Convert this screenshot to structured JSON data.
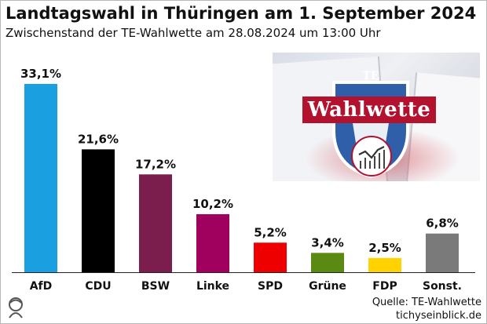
{
  "title": "Landtagswahl in Thüringen am 1. September 2024",
  "subtitle": "Zwischenstand der TE-Wahlwette am 28.08.2024 um 13:00 Uhr",
  "chart_data": {
    "type": "bar",
    "categories": [
      "AfD",
      "CDU",
      "BSW",
      "Linke",
      "SPD",
      "Grüne",
      "FDP",
      "Sonst."
    ],
    "values": [
      33.1,
      21.6,
      17.2,
      10.2,
      5.2,
      3.4,
      2.5,
      6.8
    ],
    "value_labels": [
      "33,1%",
      "21,6%",
      "17,2%",
      "10,2%",
      "5,2%",
      "3,4%",
      "2,5%",
      "6,8%"
    ],
    "colors": [
      "#1a9fe0",
      "#000000",
      "#7b1e4d",
      "#a0005e",
      "#ee0000",
      "#5a8a12",
      "#ffd200",
      "#7a7a7a"
    ],
    "ylim": [
      0,
      33.1
    ],
    "grid": false,
    "xlabel": "",
    "ylabel": ""
  },
  "promo": {
    "banner_text": "Wahlwette",
    "crest_letters": "TE",
    "icon": "chart-circle-icon"
  },
  "source": {
    "line1": "Quelle: TE-Wahlwette",
    "line2": "tichyseinblick.de"
  },
  "logo_icon": "tichys-einblick-logo-icon"
}
